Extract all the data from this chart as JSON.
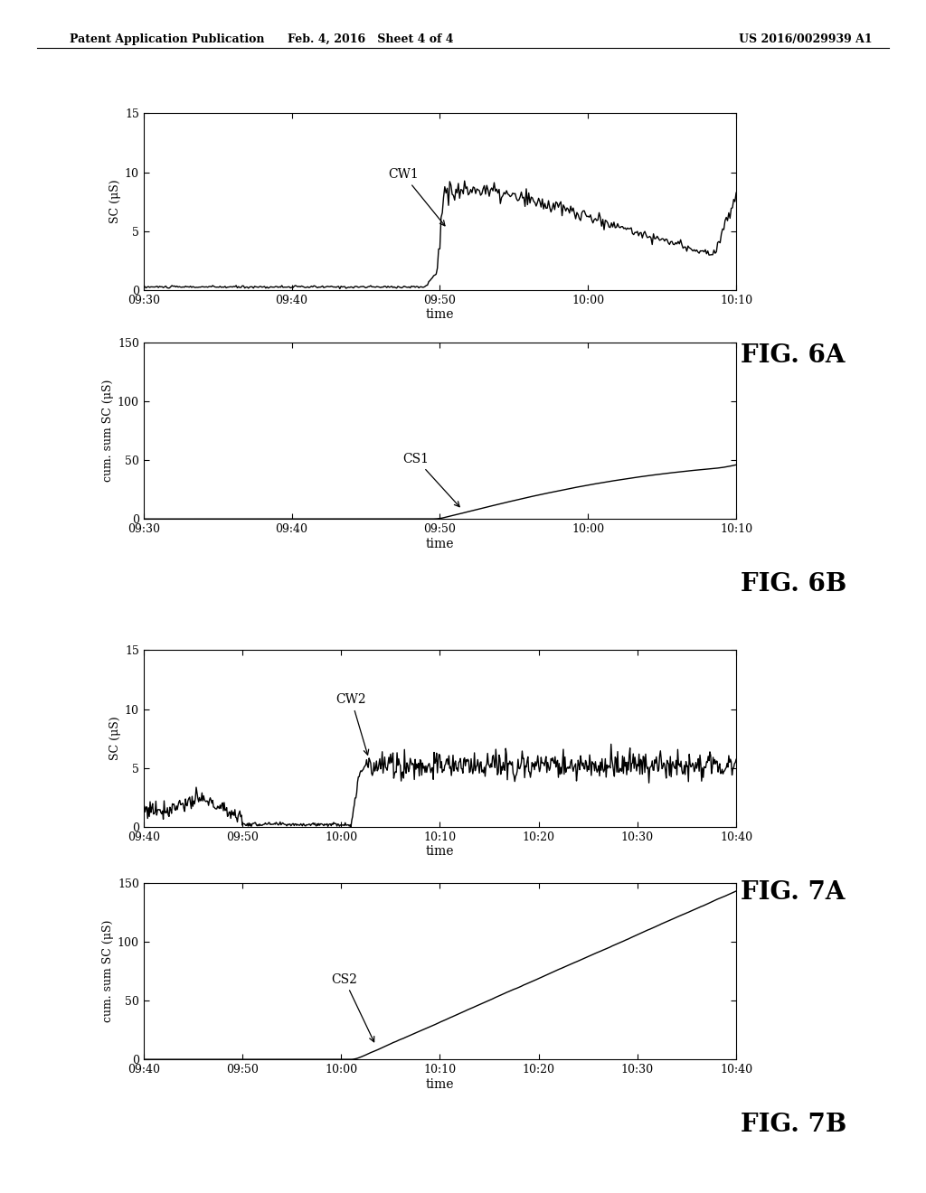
{
  "header_left": "Patent Application Publication",
  "header_mid": "Feb. 4, 2016   Sheet 4 of 4",
  "header_right": "US 2016/0029939 A1",
  "fig6a": {
    "label": "FIG. 6A",
    "ylabel": "SC (μS)",
    "xlabel": "time",
    "yticks": [
      0,
      5,
      10,
      15
    ],
    "ylim": [
      0,
      15
    ],
    "xtick_labels": [
      "09:30",
      "09:40",
      "09:50",
      "10:00",
      "10:10"
    ]
  },
  "fig6b": {
    "label": "FIG. 6B",
    "ylabel": "cum. sum SC (μS)",
    "xlabel": "time",
    "yticks": [
      0,
      50,
      100,
      150
    ],
    "ylim": [
      0,
      150
    ],
    "xtick_labels": [
      "09:30",
      "09:40",
      "09:50",
      "10:00",
      "10:10"
    ]
  },
  "fig7a": {
    "label": "FIG. 7A",
    "ylabel": "SC (μS)",
    "xlabel": "time",
    "yticks": [
      0,
      5,
      10,
      15
    ],
    "ylim": [
      0,
      15
    ],
    "xtick_labels": [
      "09:40",
      "09:50",
      "10:00",
      "10:10",
      "10:20",
      "10:30",
      "10:40"
    ]
  },
  "fig7b": {
    "label": "FIG. 7B",
    "ylabel": "cum. sum SC (μS)",
    "xlabel": "time",
    "yticks": [
      0,
      50,
      100,
      150
    ],
    "ylim": [
      0,
      150
    ],
    "xtick_labels": [
      "09:40",
      "09:50",
      "10:00",
      "10:10",
      "10:20",
      "10:30",
      "10:40"
    ]
  },
  "background_color": "#ffffff",
  "line_color": "#000000",
  "line_width": 1.0
}
